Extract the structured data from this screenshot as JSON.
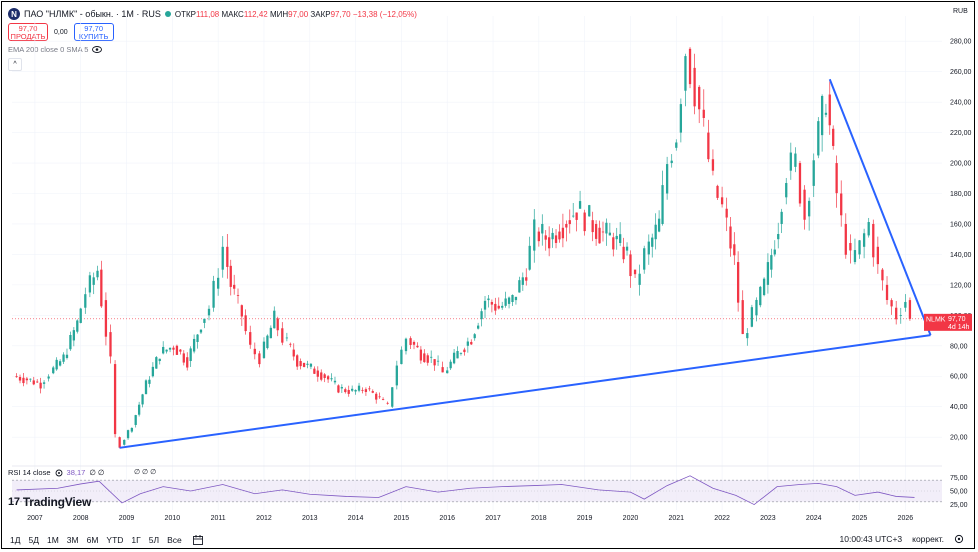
{
  "header": {
    "logo_letter": "N",
    "title": "ПАО \"НЛМК\" - обыкн. · 1M · RUS",
    "ohlc": {
      "open_label": "ОТКР",
      "open": "111,08",
      "high_label": "МАКС",
      "high": "112,42",
      "low_label": "МИН",
      "low": "97,00",
      "close_label": "ЗАКР",
      "close": "97,70",
      "change": "−13,38 (−12,05%)"
    }
  },
  "trade": {
    "sell_price": "97,70",
    "sell_label": "ПРОДАТЬ",
    "spread": "0,00",
    "buy_price": "97,70",
    "buy_label": "КУПИТЬ"
  },
  "indicators": {
    "ema": "EMA 200 close 0 SMA 5",
    "collapse_glyph": "^",
    "rsi_label": "RSI 14 close",
    "rsi_value": "38,17",
    "rsi_extra": "∅ ∅",
    "empty_values": "∅ ∅ ∅"
  },
  "currency": "RUB",
  "brand": {
    "mark": "17",
    "name": "TradingView"
  },
  "price_tag": {
    "ticker": "NLMK",
    "price": "97,70",
    "countdown": "4d 14h"
  },
  "bottom": {
    "timeframes": [
      "1Д",
      "5Д",
      "1М",
      "3М",
      "6М",
      "YTD",
      "1Г",
      "5Л",
      "Все"
    ],
    "time": "10:00:43 UTC+3",
    "adjust": "коррект."
  },
  "colors": {
    "up": "#26a69a",
    "down": "#f23645",
    "trend": "#2962ff",
    "rsi": "#7e57c2"
  },
  "chart_data": {
    "type": "candlestick",
    "y_ticks": [
      "20,00",
      "40,00",
      "60,00",
      "80,00",
      "100,00",
      "120,00",
      "140,00",
      "160,00",
      "180,00",
      "200,00",
      "220,00",
      "240,00",
      "260,00",
      "280,00"
    ],
    "ylim": [
      5,
      290
    ],
    "xlim": [
      2006.5,
      2026.8
    ],
    "x_ticks": [
      "2007",
      "2008",
      "2009",
      "2010",
      "2011",
      "2012",
      "2013",
      "2014",
      "2015",
      "2016",
      "2017",
      "2018",
      "2019",
      "2020",
      "2021",
      "2022",
      "2023",
      "2024",
      "2025",
      "2026"
    ],
    "price_path": [
      [
        2006.6,
        60
      ],
      [
        2006.9,
        58
      ],
      [
        2007.2,
        55
      ],
      [
        2007.4,
        62
      ],
      [
        2007.7,
        72
      ],
      [
        2008.0,
        95
      ],
      [
        2008.2,
        115
      ],
      [
        2008.45,
        130
      ],
      [
        2008.55,
        110
      ],
      [
        2008.75,
        68
      ],
      [
        2008.85,
        20
      ],
      [
        2008.95,
        15
      ],
      [
        2009.2,
        28
      ],
      [
        2009.5,
        55
      ],
      [
        2009.8,
        75
      ],
      [
        2010.1,
        80
      ],
      [
        2010.4,
        70
      ],
      [
        2010.7,
        95
      ],
      [
        2010.9,
        105
      ],
      [
        2011.1,
        130
      ],
      [
        2011.2,
        145
      ],
      [
        2011.35,
        120
      ],
      [
        2011.6,
        100
      ],
      [
        2011.8,
        78
      ],
      [
        2012.0,
        72
      ],
      [
        2012.3,
        98
      ],
      [
        2012.5,
        85
      ],
      [
        2012.8,
        70
      ],
      [
        2013.1,
        65
      ],
      [
        2013.4,
        60
      ],
      [
        2013.7,
        52
      ],
      [
        2014.0,
        50
      ],
      [
        2014.3,
        52
      ],
      [
        2014.6,
        45
      ],
      [
        2014.8,
        40
      ],
      [
        2015.0,
        68
      ],
      [
        2015.2,
        85
      ],
      [
        2015.5,
        75
      ],
      [
        2015.8,
        70
      ],
      [
        2016.0,
        62
      ],
      [
        2016.3,
        75
      ],
      [
        2016.6,
        85
      ],
      [
        2016.9,
        110
      ],
      [
        2017.2,
        105
      ],
      [
        2017.5,
        110
      ],
      [
        2017.8,
        130
      ],
      [
        2018.0,
        155
      ],
      [
        2018.3,
        150
      ],
      [
        2018.6,
        160
      ],
      [
        2018.9,
        170
      ],
      [
        2019.1,
        165
      ],
      [
        2019.4,
        155
      ],
      [
        2019.7,
        150
      ],
      [
        2020.0,
        140
      ],
      [
        2020.2,
        120
      ],
      [
        2020.4,
        140
      ],
      [
        2020.7,
        160
      ],
      [
        2020.9,
        200
      ],
      [
        2021.1,
        220
      ],
      [
        2021.3,
        275
      ],
      [
        2021.5,
        250
      ],
      [
        2021.7,
        220
      ],
      [
        2021.9,
        185
      ],
      [
        2022.1,
        170
      ],
      [
        2022.35,
        135
      ],
      [
        2022.55,
        85
      ],
      [
        2022.75,
        100
      ],
      [
        2023.0,
        120
      ],
      [
        2023.3,
        160
      ],
      [
        2023.5,
        195
      ],
      [
        2023.7,
        200
      ],
      [
        2023.9,
        165
      ],
      [
        2024.1,
        205
      ],
      [
        2024.35,
        245
      ],
      [
        2024.5,
        200
      ],
      [
        2024.7,
        160
      ],
      [
        2024.9,
        135
      ],
      [
        2025.1,
        145
      ],
      [
        2025.3,
        160
      ],
      [
        2025.5,
        130
      ],
      [
        2025.7,
        110
      ],
      [
        2025.9,
        100
      ],
      [
        2026.1,
        110
      ],
      [
        2026.2,
        97.7
      ]
    ],
    "trendlines": [
      {
        "x1": 2008.85,
        "y1": 13,
        "x2": 2026.55,
        "y2": 87
      },
      {
        "x1": 2024.35,
        "y1": 255,
        "x2": 2026.55,
        "y2": 87
      }
    ],
    "last_price": 97.7,
    "rsi": {
      "ylim": [
        15,
        85
      ],
      "y_ticks": [
        "25,00",
        "50,00",
        "75,00"
      ],
      "levels": [
        30,
        70
      ],
      "values": [
        [
          2006.6,
          52
        ],
        [
          2007.5,
          55
        ],
        [
          2008.0,
          63
        ],
        [
          2008.4,
          68
        ],
        [
          2008.9,
          28
        ],
        [
          2009.3,
          45
        ],
        [
          2009.8,
          58
        ],
        [
          2010.4,
          50
        ],
        [
          2011.1,
          62
        ],
        [
          2011.8,
          45
        ],
        [
          2012.4,
          52
        ],
        [
          2013.0,
          44
        ],
        [
          2013.8,
          40
        ],
        [
          2014.5,
          38
        ],
        [
          2015.1,
          58
        ],
        [
          2015.8,
          48
        ],
        [
          2016.5,
          55
        ],
        [
          2017.2,
          58
        ],
        [
          2017.9,
          60
        ],
        [
          2018.5,
          62
        ],
        [
          2019.3,
          52
        ],
        [
          2020.0,
          48
        ],
        [
          2020.3,
          35
        ],
        [
          2020.8,
          60
        ],
        [
          2021.3,
          78
        ],
        [
          2021.8,
          55
        ],
        [
          2022.3,
          42
        ],
        [
          2022.7,
          25
        ],
        [
          2023.2,
          58
        ],
        [
          2023.7,
          62
        ],
        [
          2024.1,
          64
        ],
        [
          2024.5,
          58
        ],
        [
          2024.9,
          42
        ],
        [
          2025.4,
          48
        ],
        [
          2025.8,
          40
        ],
        [
          2026.2,
          38.17
        ]
      ]
    }
  }
}
